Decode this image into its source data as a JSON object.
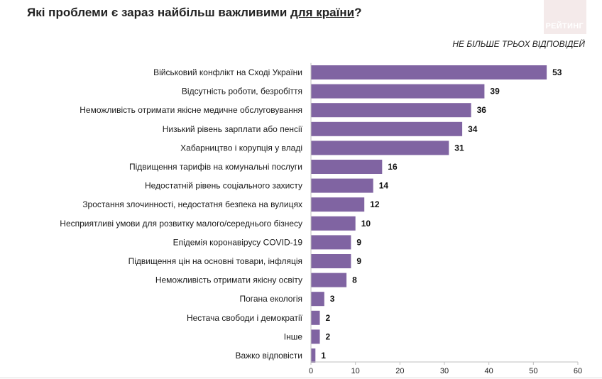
{
  "header": {
    "title_main": "Які проблеми є зараз найбільш важливими ",
    "title_underlined": "для країни",
    "title_end": "?",
    "logo_text": "РЕЙТИНГ",
    "subtitle": "НЕ БІЛЬШЕ ТРЬОХ ВІДПОВІДЕЙ"
  },
  "colors": {
    "bar": "#8064a2",
    "axis": "#bfbfbf",
    "logo_bg": "#f4eaea"
  },
  "chart_data": {
    "type": "bar",
    "orientation": "horizontal",
    "categories": [
      "Військовий конфлікт на Сході України",
      "Відсутність роботи, безробіття",
      "Неможливість отримати якісне медичне обслуговування",
      "Низький рівень зарплати або пенсії",
      "Хабарництво і корупція у владі",
      "Підвищення тарифів на комунальні послуги",
      "Недостатній рівень соціального захисту",
      "Зростання злочинності, недостатня безпека на вулицях",
      "Несприятливі умови для розвитку малого/середнього бізнесу",
      "Епідемія коронавірусу COVID-19",
      "Підвищення цін на основні товари, інфляція",
      "Неможливість отримати якісну освіту",
      "Погана екологія",
      "Нестача свободи і демократії",
      "Інше",
      "Важко відповісти"
    ],
    "values": [
      53,
      39,
      36,
      34,
      31,
      16,
      14,
      12,
      10,
      9,
      9,
      8,
      3,
      2,
      2,
      1
    ],
    "xlim": [
      0,
      60
    ],
    "xticks": [
      0,
      10,
      20,
      30,
      40,
      50,
      60
    ],
    "grid": false,
    "legend": "none"
  }
}
